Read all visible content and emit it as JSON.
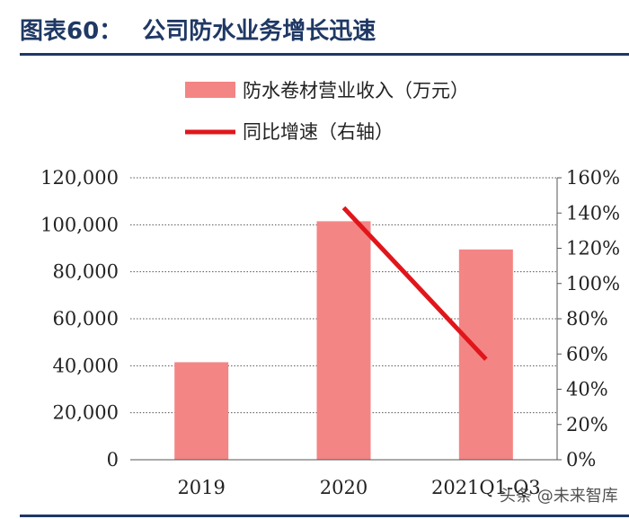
{
  "figure": {
    "label": "图表60：",
    "title": "公司防水业务增长迅速"
  },
  "watermark": "头条 @未来智库",
  "chart_data": {
    "type": "bar+line",
    "categories": [
      "2019",
      "2020",
      "2021Q1-Q3"
    ],
    "series": [
      {
        "name": "防水卷材营业收入（万元）",
        "type": "bar",
        "axis": "left",
        "color": "#f48585",
        "values": [
          41500,
          101500,
          89500
        ]
      },
      {
        "name": "同比增速（右轴）",
        "type": "line",
        "axis": "right",
        "color": "#e0161b",
        "values": [
          null,
          143,
          57
        ]
      }
    ],
    "left_axis": {
      "min": 0,
      "max": 120000,
      "step": 20000,
      "tick_labels": [
        "0",
        "20,000",
        "40,000",
        "60,000",
        "80,000",
        "100,000",
        "120,000"
      ]
    },
    "right_axis": {
      "min": 0,
      "max": 160,
      "step": 20,
      "tick_labels": [
        "0%",
        "20%",
        "40%",
        "60%",
        "80%",
        "100%",
        "120%",
        "140%",
        "160%"
      ]
    },
    "grid": "dotted horizontal",
    "legend": "top"
  }
}
